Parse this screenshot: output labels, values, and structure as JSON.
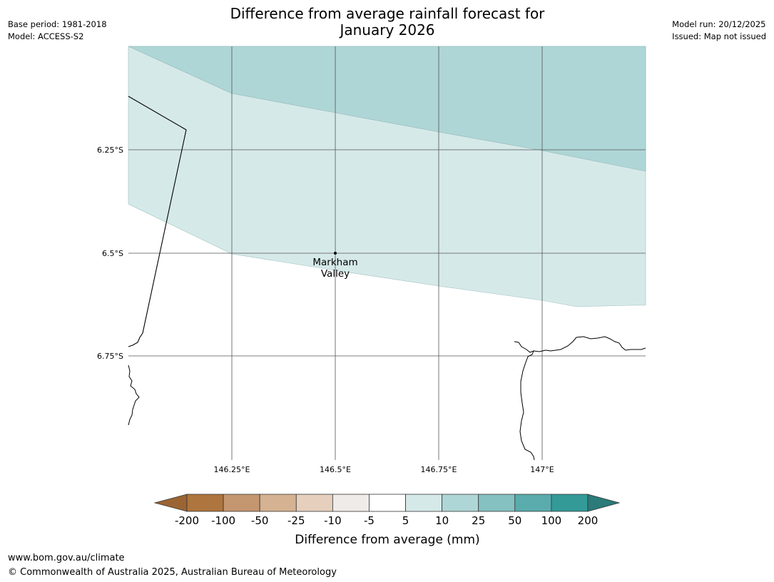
{
  "title": {
    "line1": "Difference from average rainfall forecast for",
    "line2": "January 2026"
  },
  "header_left": {
    "base_period": "Base period: 1981-2018",
    "model": "Model: ACCESS-S2"
  },
  "header_right": {
    "model_run": "Model run: 20/12/2025",
    "issued": "Issued: Map not issued"
  },
  "map": {
    "lat_ticks": [
      "6.25°S",
      "6.5°S",
      "6.75°S"
    ],
    "lon_ticks": [
      "146.25°E",
      "146.5°E",
      "146.75°E",
      "147°E"
    ],
    "place": {
      "name_line1": "Markham",
      "name_line2": "Valley"
    },
    "colors": {
      "band_10_25": "#afd6d6",
      "band_5_10": "#d6e9e9",
      "grid": "#555555",
      "coast": "#000000"
    }
  },
  "colorbar": {
    "ticks": [
      "-200",
      "-100",
      "-50",
      "-25",
      "-10",
      "-5",
      "5",
      "10",
      "25",
      "50",
      "100",
      "200"
    ],
    "colors": [
      "#9b6433",
      "#ae753e",
      "#c49670",
      "#d5b291",
      "#e6d0bd",
      "#eeebe8",
      "#ffffff",
      "#d6e9e9",
      "#afd6d6",
      "#85c1c0",
      "#5aacac",
      "#339a98",
      "#2a7b79"
    ],
    "label": "Difference from average (mm)"
  },
  "footer": {
    "url": "www.bom.gov.au/climate",
    "copyright": "© Commonwealth of Australia 2025, Australian Bureau of Meteorology"
  }
}
